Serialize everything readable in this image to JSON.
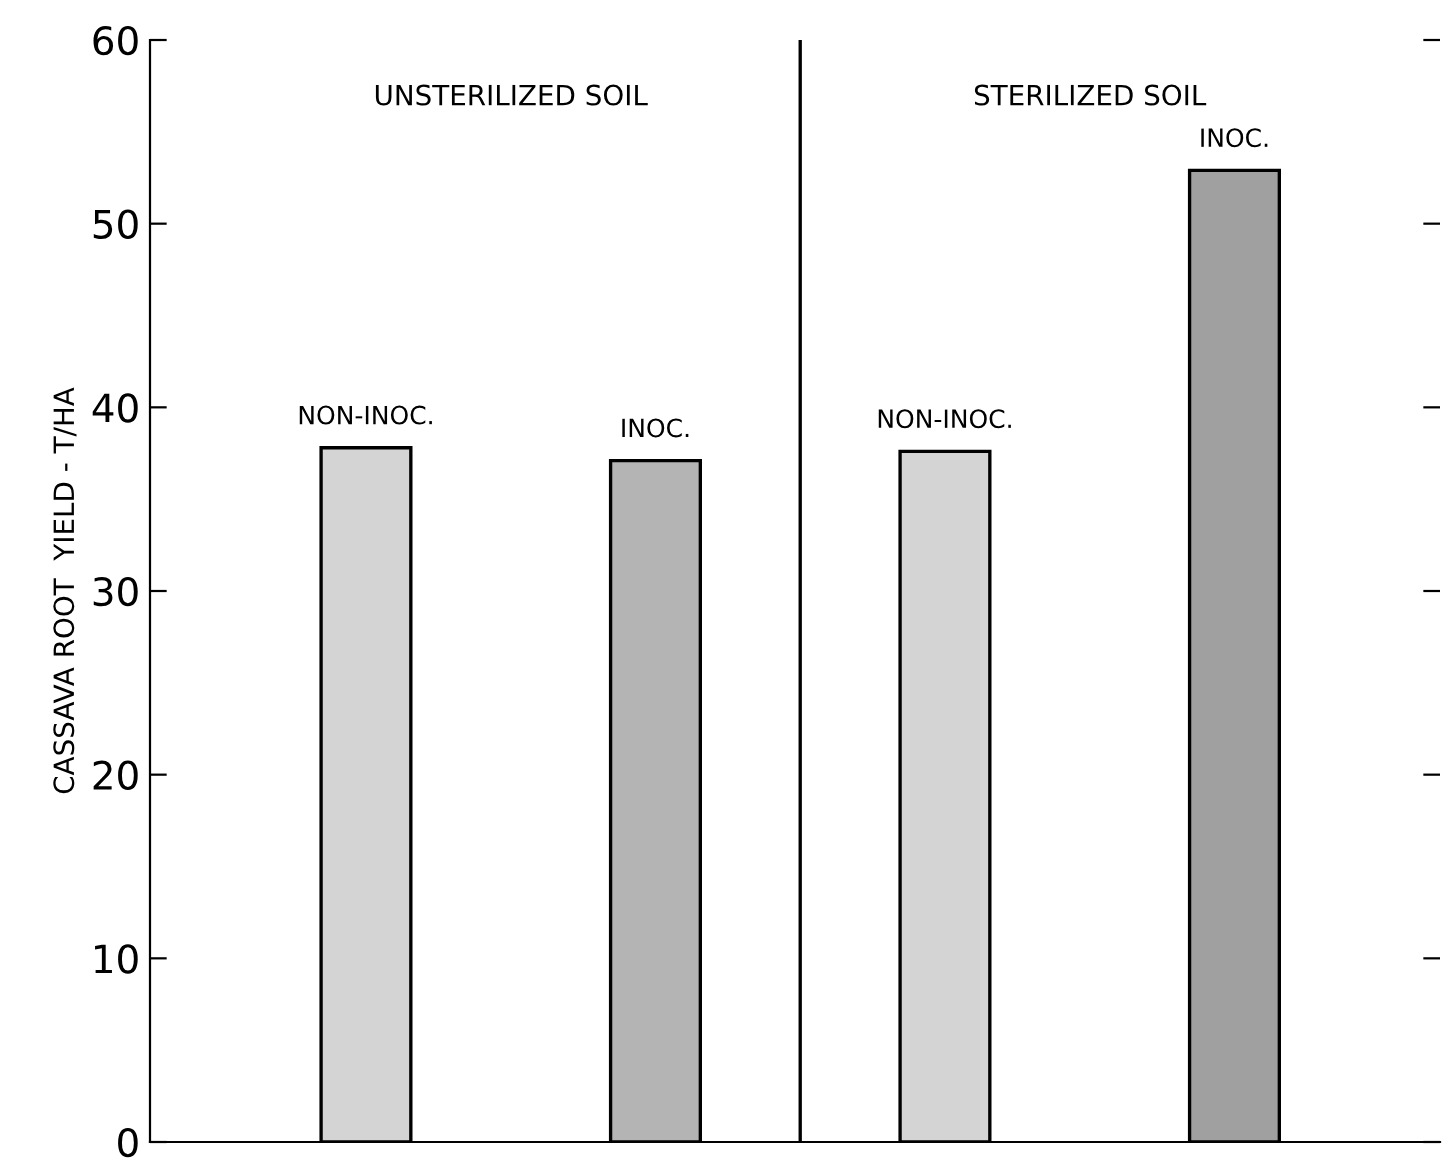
{
  "chart_data": {
    "type": "bar",
    "ylabel": "CASSAVA ROOT  YIELD - T/HA",
    "categories": [
      "NON-INOC.",
      "INOC.",
      "NON-INOC.",
      "INOC."
    ],
    "values": [
      37.8,
      37.1,
      37.6,
      52.9
    ],
    "colors": [
      "#d4d4d4",
      "#b4b4b4",
      "#d4d4d4",
      "#a0a0a0"
    ],
    "ylim": [
      0,
      60
    ],
    "yticks": [
      0,
      10,
      20,
      30,
      40,
      50,
      60
    ],
    "annotations": [
      "UNSTERILIZED SOIL",
      "STERILIZED SOIL"
    ],
    "grid": false
  }
}
